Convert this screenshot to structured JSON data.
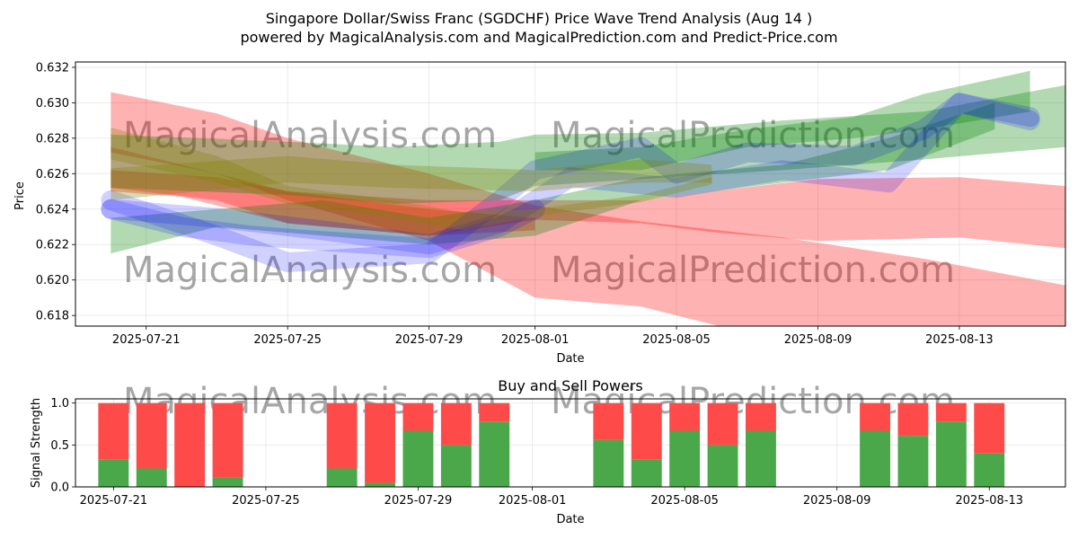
{
  "header": {
    "title": "Singapore Dollar/Swiss Franc (SGDCHF) Price Wave Trend Analysis (Aug 14 )",
    "subtitle": "powered by MagicalAnalysis.com and MagicalPrediction.com and Predict-Price.com"
  },
  "watermarks": [
    "MagicalAnalysis.com",
    "MagicalPrediction.com"
  ],
  "colors": {
    "red": "#ff0000",
    "green": "#008000",
    "blue": "#0000ff",
    "olive": "#808000",
    "buy": "#4aa84a",
    "sell": "#ff4a4a"
  },
  "chart_data": [
    {
      "type": "area",
      "title": "",
      "xlabel": "Date",
      "ylabel": "Price",
      "xlim": [
        "2025-07-19",
        "2025-08-16"
      ],
      "ylim": [
        0.6174,
        0.6323
      ],
      "x_ticks": [
        "2025-07-21",
        "2025-07-25",
        "2025-07-29",
        "2025-08-01",
        "2025-08-05",
        "2025-08-09",
        "2025-08-13"
      ],
      "y_ticks": [
        "0.618",
        "0.620",
        "0.622",
        "0.624",
        "0.626",
        "0.628",
        "0.630",
        "0.632"
      ],
      "grid": true,
      "bands": [
        {
          "color": "red",
          "x": [
            "2025-07-20",
            "2025-07-23",
            "2025-07-25",
            "2025-07-29",
            "2025-08-01",
            "2025-08-04",
            "2025-08-08",
            "2025-08-12",
            "2025-08-16"
          ],
          "upper": [
            0.6306,
            0.6294,
            0.628,
            0.626,
            0.6242,
            0.6233,
            0.6224,
            0.6212,
            0.6197
          ],
          "lower": [
            0.6272,
            0.626,
            0.6245,
            0.6222,
            0.619,
            0.6185,
            0.6165,
            0.6162,
            0.615
          ]
        },
        {
          "color": "red",
          "x": [
            "2025-07-20",
            "2025-07-23",
            "2025-07-25",
            "2025-07-29",
            "2025-08-01",
            "2025-08-04",
            "2025-08-06",
            "2025-08-09",
            "2025-08-13",
            "2025-08-16"
          ],
          "upper": [
            0.6262,
            0.6258,
            0.625,
            0.6245,
            0.6245,
            0.6245,
            0.625,
            0.6257,
            0.6258,
            0.6253
          ],
          "lower": [
            0.6252,
            0.6245,
            0.6232,
            0.6225,
            0.6234,
            0.6232,
            0.6227,
            0.6222,
            0.6224,
            0.6218
          ]
        },
        {
          "color": "red",
          "x": [
            "2025-07-20",
            "2025-07-22",
            "2025-07-25",
            "2025-07-29",
            "2025-08-01"
          ],
          "upper": [
            0.6275,
            0.6265,
            0.625,
            0.624,
            0.6235
          ],
          "lower": [
            0.625,
            0.6247,
            0.6232,
            0.6225,
            0.6228
          ]
        },
        {
          "color": "green",
          "x": [
            "2025-07-20",
            "2025-07-25",
            "2025-07-28",
            "2025-07-31",
            "2025-08-01",
            "2025-08-04",
            "2025-08-08",
            "2025-08-12",
            "2025-08-16"
          ],
          "upper": [
            0.6282,
            0.6278,
            0.6275,
            0.6278,
            0.6282,
            0.6283,
            0.629,
            0.6295,
            0.631
          ],
          "lower": [
            0.6252,
            0.6248,
            0.6243,
            0.6245,
            0.6253,
            0.6257,
            0.6262,
            0.6268,
            0.6275
          ]
        },
        {
          "color": "green",
          "x": [
            "2025-07-20",
            "2025-07-23",
            "2025-07-26",
            "2025-07-29",
            "2025-08-01",
            "2025-08-04",
            "2025-08-08",
            "2025-08-11",
            "2025-08-14"
          ],
          "upper": [
            0.6235,
            0.624,
            0.6245,
            0.6235,
            0.6245,
            0.6258,
            0.6265,
            0.628,
            0.63
          ],
          "lower": [
            0.6215,
            0.623,
            0.6225,
            0.622,
            0.6225,
            0.6245,
            0.6255,
            0.6262,
            0.6285
          ]
        },
        {
          "color": "green",
          "x": [
            "2025-08-01",
            "2025-08-04",
            "2025-08-07",
            "2025-08-10",
            "2025-08-12",
            "2025-08-15"
          ],
          "upper": [
            0.6272,
            0.6275,
            0.6285,
            0.6292,
            0.6305,
            0.6318
          ],
          "lower": [
            0.6262,
            0.6262,
            0.6275,
            0.628,
            0.6285,
            0.6295
          ]
        },
        {
          "color": "blue",
          "x": [
            "2025-07-20",
            "2025-07-23",
            "2025-07-25",
            "2025-07-29",
            "2025-07-31",
            "2025-08-01",
            "2025-08-04",
            "2025-08-05",
            "2025-08-07",
            "2025-08-10",
            "2025-08-12",
            "2025-08-13",
            "2025-08-15"
          ],
          "upper": [
            0.6245,
            0.6225,
            0.621,
            0.6215,
            0.6245,
            0.6262,
            0.6275,
            0.626,
            0.6272,
            0.627,
            0.6285,
            0.63,
            0.6292
          ]
        },
        {
          "color": "blue",
          "x": [
            "2025-07-20",
            "2025-07-23",
            "2025-07-26",
            "2025-07-29",
            "2025-07-31",
            "2025-08-02",
            "2025-08-05",
            "2025-08-08",
            "2025-08-11",
            "2025-08-13",
            "2025-08-15"
          ],
          "upper": [
            0.624,
            0.6235,
            0.6228,
            0.622,
            0.6232,
            0.6258,
            0.6252,
            0.6262,
            0.6255,
            0.63,
            0.629
          ]
        },
        {
          "color": "blue",
          "x": [
            "2025-07-20",
            "2025-07-22",
            "2025-07-24",
            "2025-07-26",
            "2025-07-29",
            "2025-07-31",
            "2025-08-01"
          ],
          "upper": [
            0.624,
            0.623,
            0.6225,
            0.6222,
            0.6218,
            0.623,
            0.624
          ]
        },
        {
          "color": "olive",
          "x": [
            "2025-07-20",
            "2025-07-23",
            "2025-07-25",
            "2025-07-28",
            "2025-07-30",
            "2025-08-01",
            "2025-08-04",
            "2025-08-06"
          ],
          "upper": [
            0.6286,
            0.627,
            0.6253,
            0.6245,
            0.6238,
            0.624,
            0.6248,
            0.6258
          ],
          "lower": [
            0.6268,
            0.6255,
            0.6243,
            0.6235,
            0.6228,
            0.6236,
            0.6244,
            0.6254
          ]
        },
        {
          "color": "olive",
          "x": [
            "2025-07-20",
            "2025-07-25",
            "2025-07-28",
            "2025-08-01",
            "2025-08-04",
            "2025-08-06"
          ],
          "upper": [
            0.6263,
            0.627,
            0.6265,
            0.6262,
            0.6268,
            0.6265
          ],
          "lower": [
            0.6245,
            0.6255,
            0.6252,
            0.625,
            0.6255,
            0.6255
          ]
        }
      ]
    },
    {
      "type": "bar",
      "stacked": true,
      "title": "Buy and Sell Powers",
      "xlabel": "Date",
      "ylabel": "Signal Strength",
      "xlim": [
        "2025-07-20",
        "2025-08-15"
      ],
      "ylim": [
        0,
        1.05
      ],
      "x_ticks": [
        "2025-07-21",
        "2025-07-25",
        "2025-07-29",
        "2025-08-01",
        "2025-08-05",
        "2025-08-09",
        "2025-08-13"
      ],
      "y_ticks": [
        "0.0",
        "0.5",
        "1.0"
      ],
      "grid": true,
      "categories": [
        "2025-07-21",
        "2025-07-22",
        "2025-07-23",
        "2025-07-24",
        "2025-07-27",
        "2025-07-28",
        "2025-07-29",
        "2025-07-30",
        "2025-07-31",
        "2025-08-03",
        "2025-08-04",
        "2025-08-05",
        "2025-08-06",
        "2025-08-07",
        "2025-08-10",
        "2025-08-11",
        "2025-08-12",
        "2025-08-13"
      ],
      "series": [
        {
          "name": "buy",
          "values": [
            0.33,
            0.22,
            0.0,
            0.11,
            0.22,
            0.05,
            0.67,
            0.5,
            0.78,
            0.56,
            0.33,
            0.67,
            0.5,
            0.67,
            0.67,
            0.61,
            0.78,
            0.4
          ]
        },
        {
          "name": "sell",
          "values": [
            0.67,
            0.78,
            1.0,
            0.89,
            0.78,
            0.95,
            0.33,
            0.5,
            0.22,
            0.44,
            0.67,
            0.33,
            0.5,
            0.33,
            0.33,
            0.39,
            0.22,
            0.6
          ]
        }
      ]
    }
  ]
}
